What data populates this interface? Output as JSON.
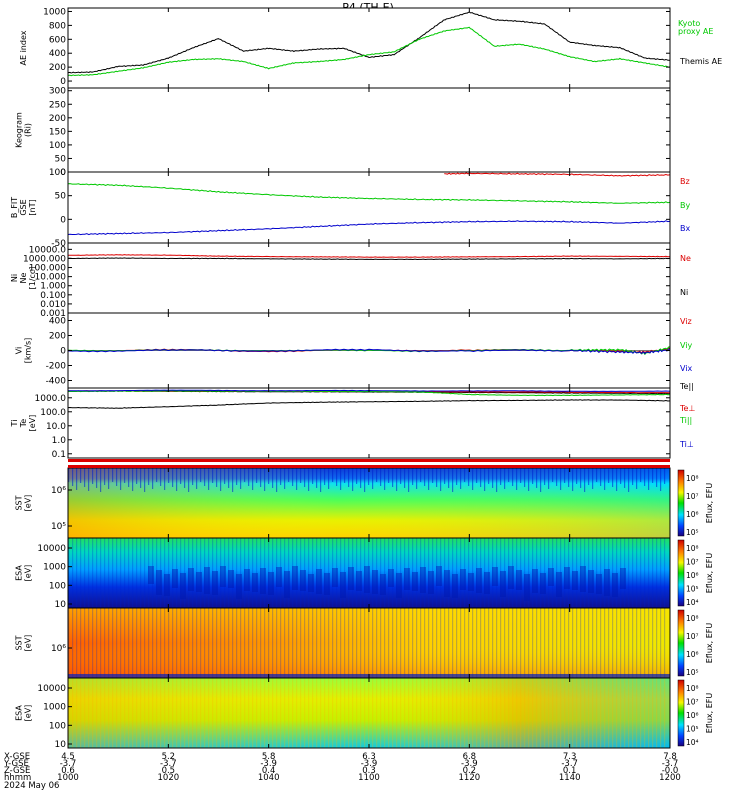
{
  "title": "P4 (TH-E)",
  "date_label": "2024 May 06",
  "footer_row_labels": [
    "X-GSE",
    "Y-GSE",
    "Z-GSE",
    "hhmm"
  ],
  "chart_data": [
    {
      "id": "ae",
      "type": "line",
      "ylabel": "AE index",
      "ylim": [
        -100,
        1050
      ],
      "yticks": [
        "0",
        "200",
        "400",
        "600",
        "800",
        "1000"
      ],
      "ytick_values": [
        0,
        200,
        400,
        600,
        800,
        1000
      ],
      "series": [
        {
          "name": "Themis AE",
          "color": "#000000",
          "x": [
            0,
            5,
            10,
            15,
            20,
            25,
            30,
            35,
            40,
            45,
            50,
            55,
            60,
            65,
            70,
            75,
            80,
            85,
            90,
            95,
            100,
            105,
            110,
            115,
            120
          ],
          "y": [
            120,
            130,
            210,
            230,
            330,
            480,
            610,
            430,
            470,
            430,
            460,
            470,
            340,
            380,
            620,
            880,
            990,
            880,
            860,
            820,
            560,
            510,
            480,
            330,
            300
          ]
        },
        {
          "name": "proxy AE",
          "label_lines": [
            "Kyoto",
            "proxy AE"
          ],
          "color": "#00c800",
          "x": [
            0,
            5,
            10,
            15,
            20,
            25,
            30,
            35,
            40,
            45,
            50,
            55,
            60,
            65,
            70,
            75,
            80,
            85,
            90,
            95,
            100,
            105,
            110,
            115,
            120
          ],
          "y": [
            80,
            90,
            140,
            190,
            270,
            310,
            320,
            280,
            180,
            260,
            280,
            310,
            380,
            420,
            600,
            720,
            770,
            500,
            530,
            460,
            350,
            280,
            320,
            260,
            200
          ]
        }
      ]
    },
    {
      "id": "keogram",
      "type": "heatmap",
      "ylabel_lines": [
        "Keogram",
        "(Ri)"
      ],
      "ylim": [
        0,
        310
      ],
      "yticks": [
        "0",
        "50",
        "100",
        "150",
        "200",
        "250",
        "300"
      ],
      "ytick_values": [
        0,
        50,
        100,
        150,
        200,
        250,
        300
      ],
      "values": []
    },
    {
      "id": "bfield",
      "type": "line",
      "ylabel_lines": [
        "B_FIT",
        "GSE",
        "[nT]"
      ],
      "ylim": [
        -50,
        100
      ],
      "yticks": [
        "-50",
        "0",
        "50",
        "100"
      ],
      "ytick_values": [
        -50,
        0,
        50,
        100
      ],
      "series": [
        {
          "name": "Bz",
          "color": "#dc0000",
          "x": [
            75,
            80,
            90,
            100,
            110,
            120
          ],
          "y": [
            96,
            97,
            96,
            95,
            92,
            94
          ]
        },
        {
          "name": "By",
          "color": "#00c800",
          "x": [
            0,
            10,
            20,
            30,
            40,
            50,
            60,
            70,
            80,
            90,
            100,
            110,
            120
          ],
          "y": [
            75,
            72,
            66,
            58,
            52,
            47,
            44,
            42,
            41,
            39,
            37,
            34,
            36
          ]
        },
        {
          "name": "Bx",
          "color": "#0000cc",
          "x": [
            0,
            10,
            20,
            30,
            40,
            50,
            60,
            70,
            80,
            90,
            100,
            110,
            120
          ],
          "y": [
            -32,
            -30,
            -28,
            -24,
            -20,
            -15,
            -10,
            -7,
            -5,
            -4,
            -5,
            -8,
            -4
          ]
        }
      ]
    },
    {
      "id": "density",
      "type": "line",
      "log_y": true,
      "ylabel_lines": [
        "Ni",
        "Ne",
        "[1/cc]"
      ],
      "ylim": [
        0.001,
        50000
      ],
      "yticks": [
        "0.001",
        "0.010",
        "0.100",
        "1.000",
        "10.000",
        "100.000",
        "1000.000",
        "10000.0"
      ],
      "ytick_values": [
        0.001,
        0.01,
        0.1,
        1,
        10,
        100,
        1000,
        10000
      ],
      "series": [
        {
          "name": "Ne",
          "color": "#dc0000",
          "x": [
            0,
            10,
            20,
            30,
            40,
            50,
            60,
            70,
            80,
            90,
            100,
            110,
            120
          ],
          "y": [
            2200,
            2500,
            2300,
            1800,
            1600,
            1500,
            1400,
            1400,
            1500,
            1600,
            1800,
            1700,
            1600
          ]
        },
        {
          "name": "Ni",
          "color": "#000000",
          "x": [
            0,
            10,
            20,
            30,
            40,
            50,
            60,
            70,
            80,
            90,
            100,
            110,
            120
          ],
          "y": [
            1000,
            1100,
            1000,
            1000,
            900,
            850,
            800,
            800,
            850,
            900,
            950,
            900,
            1000
          ]
        }
      ]
    },
    {
      "id": "velocity",
      "type": "line",
      "ylabel_lines": [
        "Vi",
        "[km/s]"
      ],
      "ylim": [
        -500,
        500
      ],
      "yticks": [
        "-400",
        "-200",
        "0",
        "200",
        "400"
      ],
      "ytick_values": [
        -400,
        -200,
        0,
        200,
        400
      ],
      "series": [
        {
          "name": "Viz",
          "color": "#dc0000",
          "x": [
            0,
            20,
            40,
            60,
            80,
            100,
            110,
            115,
            120
          ],
          "y": [
            0,
            5,
            -5,
            0,
            5,
            0,
            -10,
            -20,
            20
          ]
        },
        {
          "name": "Viy",
          "color": "#00c800",
          "x": [
            0,
            20,
            40,
            60,
            80,
            100,
            110,
            115,
            120
          ],
          "y": [
            5,
            0,
            5,
            -5,
            0,
            5,
            10,
            -40,
            40
          ]
        },
        {
          "name": "Vix",
          "color": "#0000cc",
          "x": [
            0,
            20,
            40,
            60,
            80,
            100,
            110,
            115,
            120
          ],
          "y": [
            -5,
            0,
            0,
            5,
            -5,
            0,
            -20,
            -30,
            10
          ]
        }
      ]
    },
    {
      "id": "temperature",
      "type": "line",
      "log_y": true,
      "ylabel_lines": [
        "Ti",
        "Te",
        "[eV]"
      ],
      "ylim": [
        0.05,
        5000
      ],
      "yticks": [
        "0.1",
        "1.0",
        "10.0",
        "100.0",
        "1000.0"
      ],
      "ytick_values": [
        0.1,
        1,
        10,
        100,
        1000
      ],
      "series": [
        {
          "name": "Te||",
          "color": "#000000",
          "x": [
            0,
            10,
            20,
            30,
            40,
            50,
            60,
            70,
            80,
            90,
            100,
            110,
            120
          ],
          "y": [
            3000,
            3000,
            2900,
            2800,
            2700,
            2700,
            2600,
            2500,
            2400,
            2300,
            2200,
            2100,
            2000
          ]
        },
        {
          "name": "Te⊥",
          "color": "#dc0000",
          "x": [
            0,
            30,
            60,
            90,
            120
          ],
          "y": [
            3100,
            3000,
            2800,
            2600,
            2300
          ]
        },
        {
          "name": "Ti||",
          "color": "#00c800",
          "x": [
            0,
            10,
            20,
            30,
            40,
            50,
            60,
            70,
            80,
            90,
            100,
            110,
            120
          ],
          "y": [
            2800,
            3000,
            3100,
            3000,
            2900,
            2900,
            2800,
            2600,
            1700,
            1500,
            1500,
            1600,
            1700
          ]
        },
        {
          "name": "Ti⊥",
          "color": "#0000cc",
          "x": [
            0,
            20,
            40,
            60,
            80,
            100,
            120
          ],
          "y": [
            3200,
            3400,
            3300,
            3200,
            3100,
            3000,
            2900
          ]
        },
        {
          "name": "Ti",
          "color": "#000000",
          "x": [
            0,
            10,
            20,
            30,
            40,
            50,
            60,
            70,
            80,
            90,
            100,
            110,
            120
          ],
          "y": [
            200,
            180,
            230,
            300,
            420,
            480,
            520,
            560,
            620,
            650,
            700,
            690,
            600
          ]
        }
      ]
    },
    {
      "id": "sst_e",
      "type": "heatmap",
      "ylabel_lines": [
        "SST",
        "[eV]"
      ],
      "yticks": [
        "10⁶",
        "10⁵"
      ],
      "colorbar": {
        "label": "Eflux, EFU",
        "ticks": [
          "10⁸",
          "10⁷",
          "10⁶",
          "10⁵"
        ]
      },
      "values": []
    },
    {
      "id": "esa_e",
      "type": "heatmap",
      "ylabel_lines": [
        "ESA",
        "[eV]"
      ],
      "yticks": [
        "10000",
        "1000",
        "100",
        "10"
      ],
      "colorbar": {
        "label": "Eflux, EFU",
        "ticks": [
          "10⁸",
          "10⁷",
          "10⁶",
          "10⁵",
          "10⁴"
        ]
      },
      "values": []
    },
    {
      "id": "sst_i",
      "type": "heatmap",
      "ylabel_lines": [
        "SST",
        "[eV]"
      ],
      "yticks": [
        "10⁶"
      ],
      "colorbar": {
        "label": "Eflux, EFU",
        "ticks": [
          "10⁸",
          "10⁷",
          "10⁶",
          "10⁵"
        ]
      },
      "values": []
    },
    {
      "id": "esa_i",
      "type": "heatmap",
      "ylabel_lines": [
        "ESA",
        "[eV]"
      ],
      "yticks": [
        "10000",
        "1000",
        "100",
        "10"
      ],
      "colorbar": {
        "label": "Eflux, EFU",
        "ticks": [
          "10⁸",
          "10⁷",
          "10⁶",
          "10⁵",
          "10⁴"
        ]
      },
      "values": []
    }
  ],
  "x_axis": {
    "xlim": [
      0,
      120
    ],
    "ticks": [
      {
        "t": 0,
        "x_gse": "4.5",
        "y_gse": "-3.7",
        "z_gse": "0.6",
        "hhmm": "1000"
      },
      {
        "t": 20,
        "x_gse": "5.2",
        "y_gse": "-3.7",
        "z_gse": "0.5",
        "hhmm": "1020"
      },
      {
        "t": 40,
        "x_gse": "5.8",
        "y_gse": "-3.9",
        "z_gse": "0.4",
        "hhmm": "1040"
      },
      {
        "t": 60,
        "x_gse": "6.3",
        "y_gse": "-3.9",
        "z_gse": "0.3",
        "hhmm": "1100"
      },
      {
        "t": 80,
        "x_gse": "6.8",
        "y_gse": "-3.9",
        "z_gse": "0.2",
        "hhmm": "1120"
      },
      {
        "t": 100,
        "x_gse": "7.3",
        "y_gse": "-3.7",
        "z_gse": "0.1",
        "hhmm": "1140"
      },
      {
        "t": 120,
        "x_gse": "7.8",
        "y_gse": "-3.7",
        "z_gse": "-0.0",
        "hhmm": "1200"
      }
    ]
  },
  "colors": {
    "axis": "#000000",
    "red": "#dc0000",
    "green": "#00c800",
    "blue": "#0000cc"
  }
}
